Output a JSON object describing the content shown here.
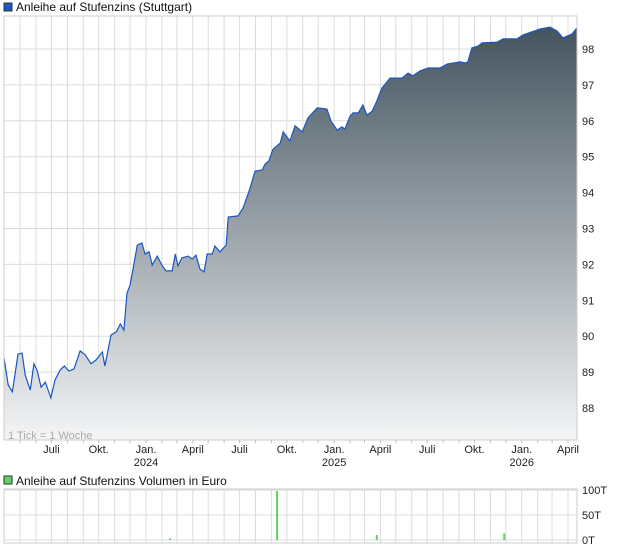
{
  "chart_data": [
    {
      "type": "area",
      "title": "Anleihe auf Stufenzins (Stuttgart)",
      "note": "1 Tick = 1 Woche",
      "colors": {
        "line": "#1a56c4",
        "fill_top": "#44545f",
        "fill_bottom": "#f4f5f6",
        "legend": "#1a56c4"
      },
      "grid": true,
      "y_axis_position": "right",
      "ylim": [
        87.2,
        98.9
      ],
      "yticks": [
        88,
        89,
        90,
        91,
        92,
        93,
        94,
        95,
        96,
        97,
        98
      ],
      "xticks": [
        {
          "date": "2023-07-01",
          "label": "Juli",
          "year": ""
        },
        {
          "date": "2023-10-01",
          "label": "Okt.",
          "year": ""
        },
        {
          "date": "2024-01-01",
          "label": "Jan.",
          "year": "2024"
        },
        {
          "date": "2024-04-01",
          "label": "April",
          "year": ""
        },
        {
          "date": "2024-07-01",
          "label": "Juli",
          "year": ""
        },
        {
          "date": "2024-10-01",
          "label": "Okt.",
          "year": ""
        },
        {
          "date": "2025-01-01",
          "label": "Jan.",
          "year": "2025"
        },
        {
          "date": "2025-04-01",
          "label": "April",
          "year": ""
        },
        {
          "date": "2025-07-01",
          "label": "Juli",
          "year": ""
        },
        {
          "date": "2025-10-01",
          "label": "Okt.",
          "year": ""
        },
        {
          "date": "2026-01-01",
          "label": "Jan.",
          "year": "2026"
        },
        {
          "date": "2026-04-01",
          "label": "April",
          "year": ""
        }
      ],
      "points": [
        [
          "2023-03-31",
          89.39
        ],
        [
          "2023-04-08",
          88.64
        ],
        [
          "2023-04-16",
          88.45
        ],
        [
          "2023-04-27",
          89.5
        ],
        [
          "2023-05-05",
          89.53
        ],
        [
          "2023-05-11",
          88.92
        ],
        [
          "2023-05-21",
          88.5
        ],
        [
          "2023-05-28",
          89.23
        ],
        [
          "2023-06-03",
          89.06
        ],
        [
          "2023-06-11",
          88.58
        ],
        [
          "2023-06-19",
          88.72
        ],
        [
          "2023-06-30",
          88.28
        ],
        [
          "2023-07-08",
          88.78
        ],
        [
          "2023-07-18",
          89.06
        ],
        [
          "2023-07-26",
          89.17
        ],
        [
          "2023-08-04",
          89.03
        ],
        [
          "2023-08-14",
          89.09
        ],
        [
          "2023-08-26",
          89.59
        ],
        [
          "2023-09-05",
          89.48
        ],
        [
          "2023-09-16",
          89.23
        ],
        [
          "2023-09-26",
          89.34
        ],
        [
          "2023-10-08",
          89.56
        ],
        [
          "2023-10-13",
          89.17
        ],
        [
          "2023-10-25",
          90.03
        ],
        [
          "2023-11-04",
          90.12
        ],
        [
          "2023-11-12",
          90.34
        ],
        [
          "2023-11-19",
          90.17
        ],
        [
          "2023-11-25",
          91.2
        ],
        [
          "2023-12-01",
          91.43
        ],
        [
          "2023-12-07",
          91.9
        ],
        [
          "2023-12-15",
          92.54
        ],
        [
          "2023-12-24",
          92.6
        ],
        [
          "2023-12-30",
          92.29
        ],
        [
          "2024-01-07",
          92.35
        ],
        [
          "2024-01-13",
          91.98
        ],
        [
          "2024-01-23",
          92.23
        ],
        [
          "2024-02-01",
          91.98
        ],
        [
          "2024-02-09",
          91.82
        ],
        [
          "2024-02-21",
          91.82
        ],
        [
          "2024-02-27",
          92.29
        ],
        [
          "2024-03-03",
          91.96
        ],
        [
          "2024-03-11",
          92.18
        ],
        [
          "2024-03-23",
          92.23
        ],
        [
          "2024-03-31",
          92.15
        ],
        [
          "2024-04-07",
          92.26
        ],
        [
          "2024-04-15",
          91.87
        ],
        [
          "2024-04-23",
          91.79
        ],
        [
          "2024-04-29",
          92.29
        ],
        [
          "2024-05-09",
          92.29
        ],
        [
          "2024-05-14",
          92.51
        ],
        [
          "2024-05-24",
          92.35
        ],
        [
          "2024-06-05",
          92.54
        ],
        [
          "2024-06-09",
          93.32
        ],
        [
          "2024-06-28",
          93.35
        ],
        [
          "2024-07-08",
          93.57
        ],
        [
          "2024-07-21",
          94.1
        ],
        [
          "2024-07-31",
          94.6
        ],
        [
          "2024-08-14",
          94.63
        ],
        [
          "2024-08-20",
          94.8
        ],
        [
          "2024-08-27",
          94.88
        ],
        [
          "2024-09-04",
          95.21
        ],
        [
          "2024-09-18",
          95.38
        ],
        [
          "2024-09-24",
          95.69
        ],
        [
          "2024-10-07",
          95.44
        ],
        [
          "2024-10-17",
          95.86
        ],
        [
          "2024-10-31",
          95.69
        ],
        [
          "2024-11-11",
          96.08
        ],
        [
          "2024-11-29",
          96.36
        ],
        [
          "2024-12-18",
          96.33
        ],
        [
          "2024-12-26",
          95.99
        ],
        [
          "2025-01-07",
          95.74
        ],
        [
          "2025-01-16",
          95.83
        ],
        [
          "2025-01-22",
          95.77
        ],
        [
          "2025-02-01",
          96.13
        ],
        [
          "2025-02-07",
          96.22
        ],
        [
          "2025-02-17",
          96.22
        ],
        [
          "2025-02-26",
          96.44
        ],
        [
          "2025-03-06",
          96.16
        ],
        [
          "2025-03-16",
          96.27
        ],
        [
          "2025-03-25",
          96.55
        ],
        [
          "2025-04-04",
          96.91
        ],
        [
          "2025-04-20",
          97.19
        ],
        [
          "2025-05-13",
          97.19
        ],
        [
          "2025-05-25",
          97.33
        ],
        [
          "2025-06-03",
          97.25
        ],
        [
          "2025-06-17",
          97.39
        ],
        [
          "2025-07-03",
          97.47
        ],
        [
          "2025-07-26",
          97.47
        ],
        [
          "2025-08-09",
          97.58
        ],
        [
          "2025-09-03",
          97.64
        ],
        [
          "2025-09-13",
          97.61
        ],
        [
          "2025-09-18",
          97.64
        ],
        [
          "2025-09-26",
          98.03
        ],
        [
          "2025-10-08",
          98.08
        ],
        [
          "2025-10-16",
          98.17
        ],
        [
          "2025-11-14",
          98.19
        ],
        [
          "2025-11-26",
          98.28
        ],
        [
          "2025-12-23",
          98.28
        ],
        [
          "2026-01-03",
          98.39
        ],
        [
          "2026-02-06",
          98.56
        ],
        [
          "2026-02-25",
          98.61
        ],
        [
          "2026-03-11",
          98.5
        ],
        [
          "2026-03-22",
          98.31
        ],
        [
          "2026-04-09",
          98.42
        ],
        [
          "2026-04-18",
          98.58
        ]
      ]
    },
    {
      "type": "bar",
      "title": "Anleihe auf Stufenzins Volumen in Euro",
      "colors": {
        "bar": "#5fd35f",
        "legend": "#5fd35f"
      },
      "grid": true,
      "ylim": [
        0,
        100
      ],
      "yticks": [
        {
          "value": 0,
          "label": "0T"
        },
        {
          "value": 50,
          "label": "50T"
        },
        {
          "value": 100,
          "label": "100T"
        }
      ],
      "unit": "T",
      "bars": [
        [
          "2024-02-17",
          3
        ],
        [
          "2024-09-12",
          98
        ],
        [
          "2025-03-25",
          10
        ],
        [
          "2025-11-28",
          13
        ]
      ]
    }
  ]
}
